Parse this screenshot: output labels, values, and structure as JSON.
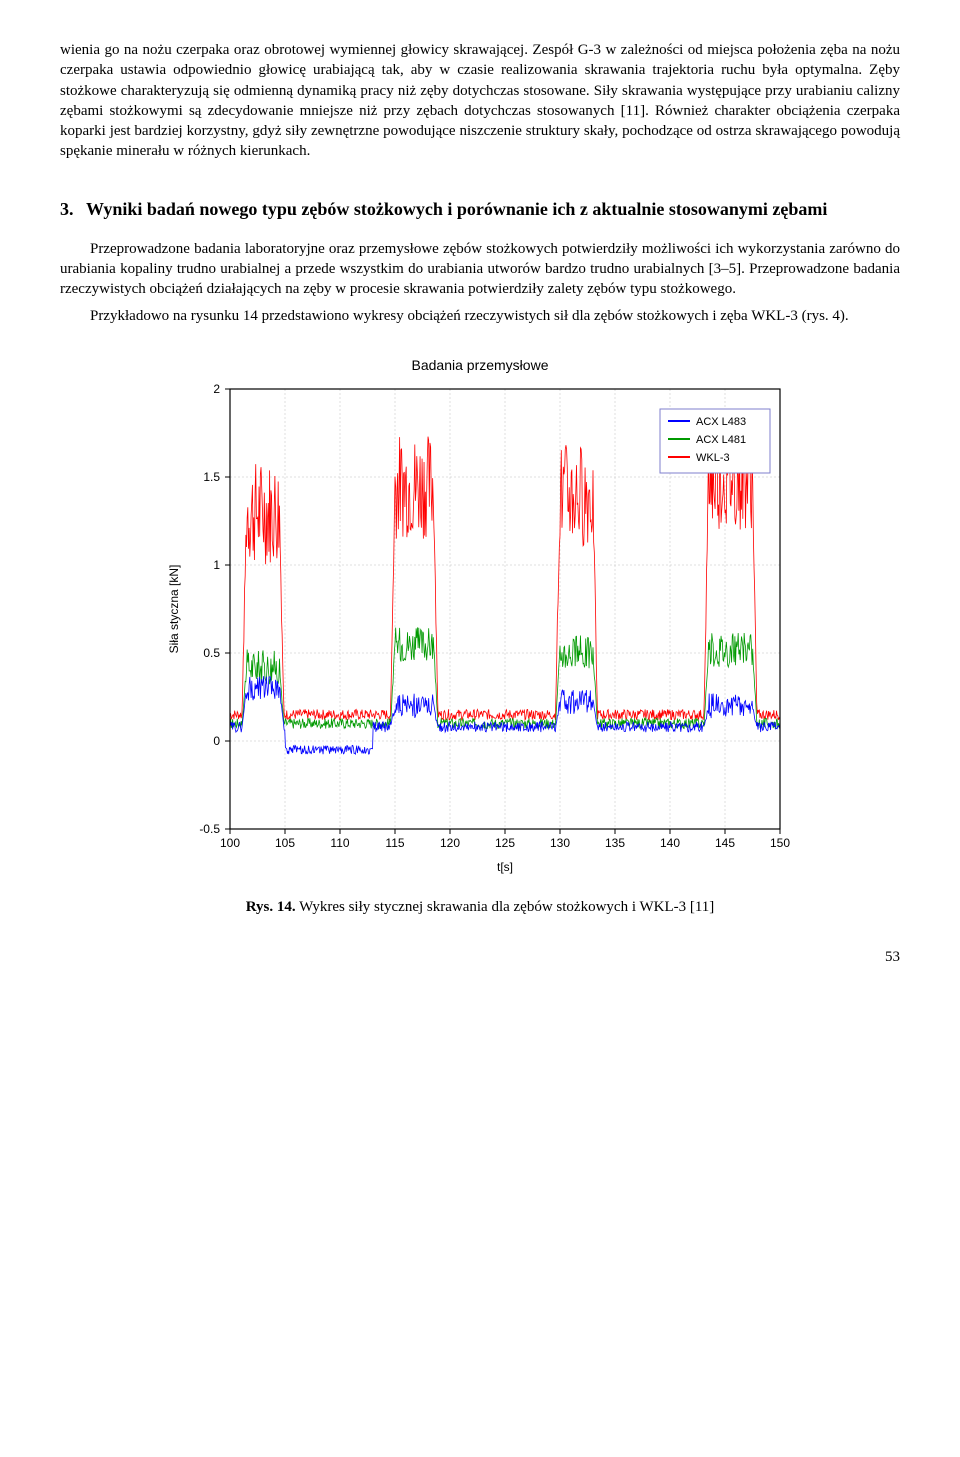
{
  "paragraphs": {
    "p1": "wienia go na nożu czerpaka oraz obrotowej wymiennej głowicy skrawającej. Zespół G-3 w zależności od miejsca położenia zęba na nożu czerpaka ustawia odpowiednio głowicę urabiającą tak, aby w czasie realizowania skrawania trajektoria ruchu była optymalna. Zęby stożkowe charakteryzują się odmienną dynamiką pracy niż zęby dotychczas stosowane. Siły skrawania występujące przy urabianiu calizny zębami stożkowymi są zdecydowanie mniejsze niż przy zębach dotychczas stosowanych [11]. Również charakter obciążenia czerpaka koparki jest bardziej korzystny, gdyż siły zewnętrzne powodujące niszczenie struktury skały, pochodzące od ostrza skrawającego powodują spękanie minerału w różnych kierunkach.",
    "heading_num": "3.",
    "heading": "Wyniki badań nowego typu zębów stożkowych i porównanie ich z aktualnie stosowanymi zębami",
    "p2": "Przeprowadzone badania laboratoryjne oraz przemysłowe zębów stożkowych potwierdziły możliwości ich wykorzystania zarówno do urabiania kopaliny trudno urabialnej a przede wszystkim do urabiania utworów bardzo trudno urabialnych [3–5]. Przeprowadzone badania rzeczywistych obciążeń działających na zęby w procesie skrawania potwierdziły zalety zębów typu stożkowego.",
    "p3": "Przykładowo na rysunku 14 przedstawiono wykresy obciążeń rzeczywistych sił dla zębów stożkowych i zęba WKL-3 (rys. 4)."
  },
  "chart": {
    "title": "Badania przemysłowe",
    "xlabel": "t[s]",
    "ylabel": "Siła styczna [kN]",
    "xlim": [
      100,
      150
    ],
    "ylim": [
      -0.5,
      2.0
    ],
    "xticks": [
      100,
      105,
      110,
      115,
      120,
      125,
      130,
      135,
      140,
      145,
      150
    ],
    "yticks": [
      -0.5,
      0,
      0.5,
      1,
      1.5,
      2
    ],
    "box_color": "#000000",
    "grid_color": "#bfbfbf",
    "background": "#ffffff",
    "axis_fontsize": 12,
    "label_fontsize": 12,
    "title_fontsize": 14,
    "line_width": 0.8,
    "legend": {
      "items": [
        {
          "label": "ACX L483",
          "color": "#0000ff"
        },
        {
          "label": "ACX L481",
          "color": "#009900"
        },
        {
          "label": "WKL-3",
          "color": "#ff0000"
        }
      ],
      "border_color": "#7f7fcc",
      "pos": "topright"
    },
    "series_colors": {
      "acx_l483": "#0000ff",
      "acx_l481": "#009900",
      "wkl3": "#ff0000"
    },
    "pulses": [
      {
        "start": 101.5,
        "end": 104.5,
        "blue_base": 0.3,
        "green_base": 0.42,
        "red_base": 1.3
      },
      {
        "start": 115.0,
        "end": 118.5,
        "blue_base": 0.2,
        "green_base": 0.55,
        "red_base": 1.45
      },
      {
        "start": 130.0,
        "end": 133.0,
        "blue_base": 0.22,
        "green_base": 0.5,
        "red_base": 1.4
      },
      {
        "start": 143.5,
        "end": 147.5,
        "blue_base": 0.2,
        "green_base": 0.52,
        "red_base": 1.5
      }
    ],
    "quiet_level": {
      "blue": 0.08,
      "green": 0.1,
      "red": 0.15
    },
    "noise_amp": {
      "blue": 0.07,
      "green": 0.1,
      "red": 0.3
    },
    "quiet_noise": 0.03,
    "blue_dip": {
      "start": 105,
      "end": 113,
      "level": -0.05
    }
  },
  "caption": {
    "bold": "Rys. 14.",
    "text": " Wykres siły stycznej skrawania dla zębów stożkowych i WKL-3 [11]"
  },
  "pagenum": "53"
}
